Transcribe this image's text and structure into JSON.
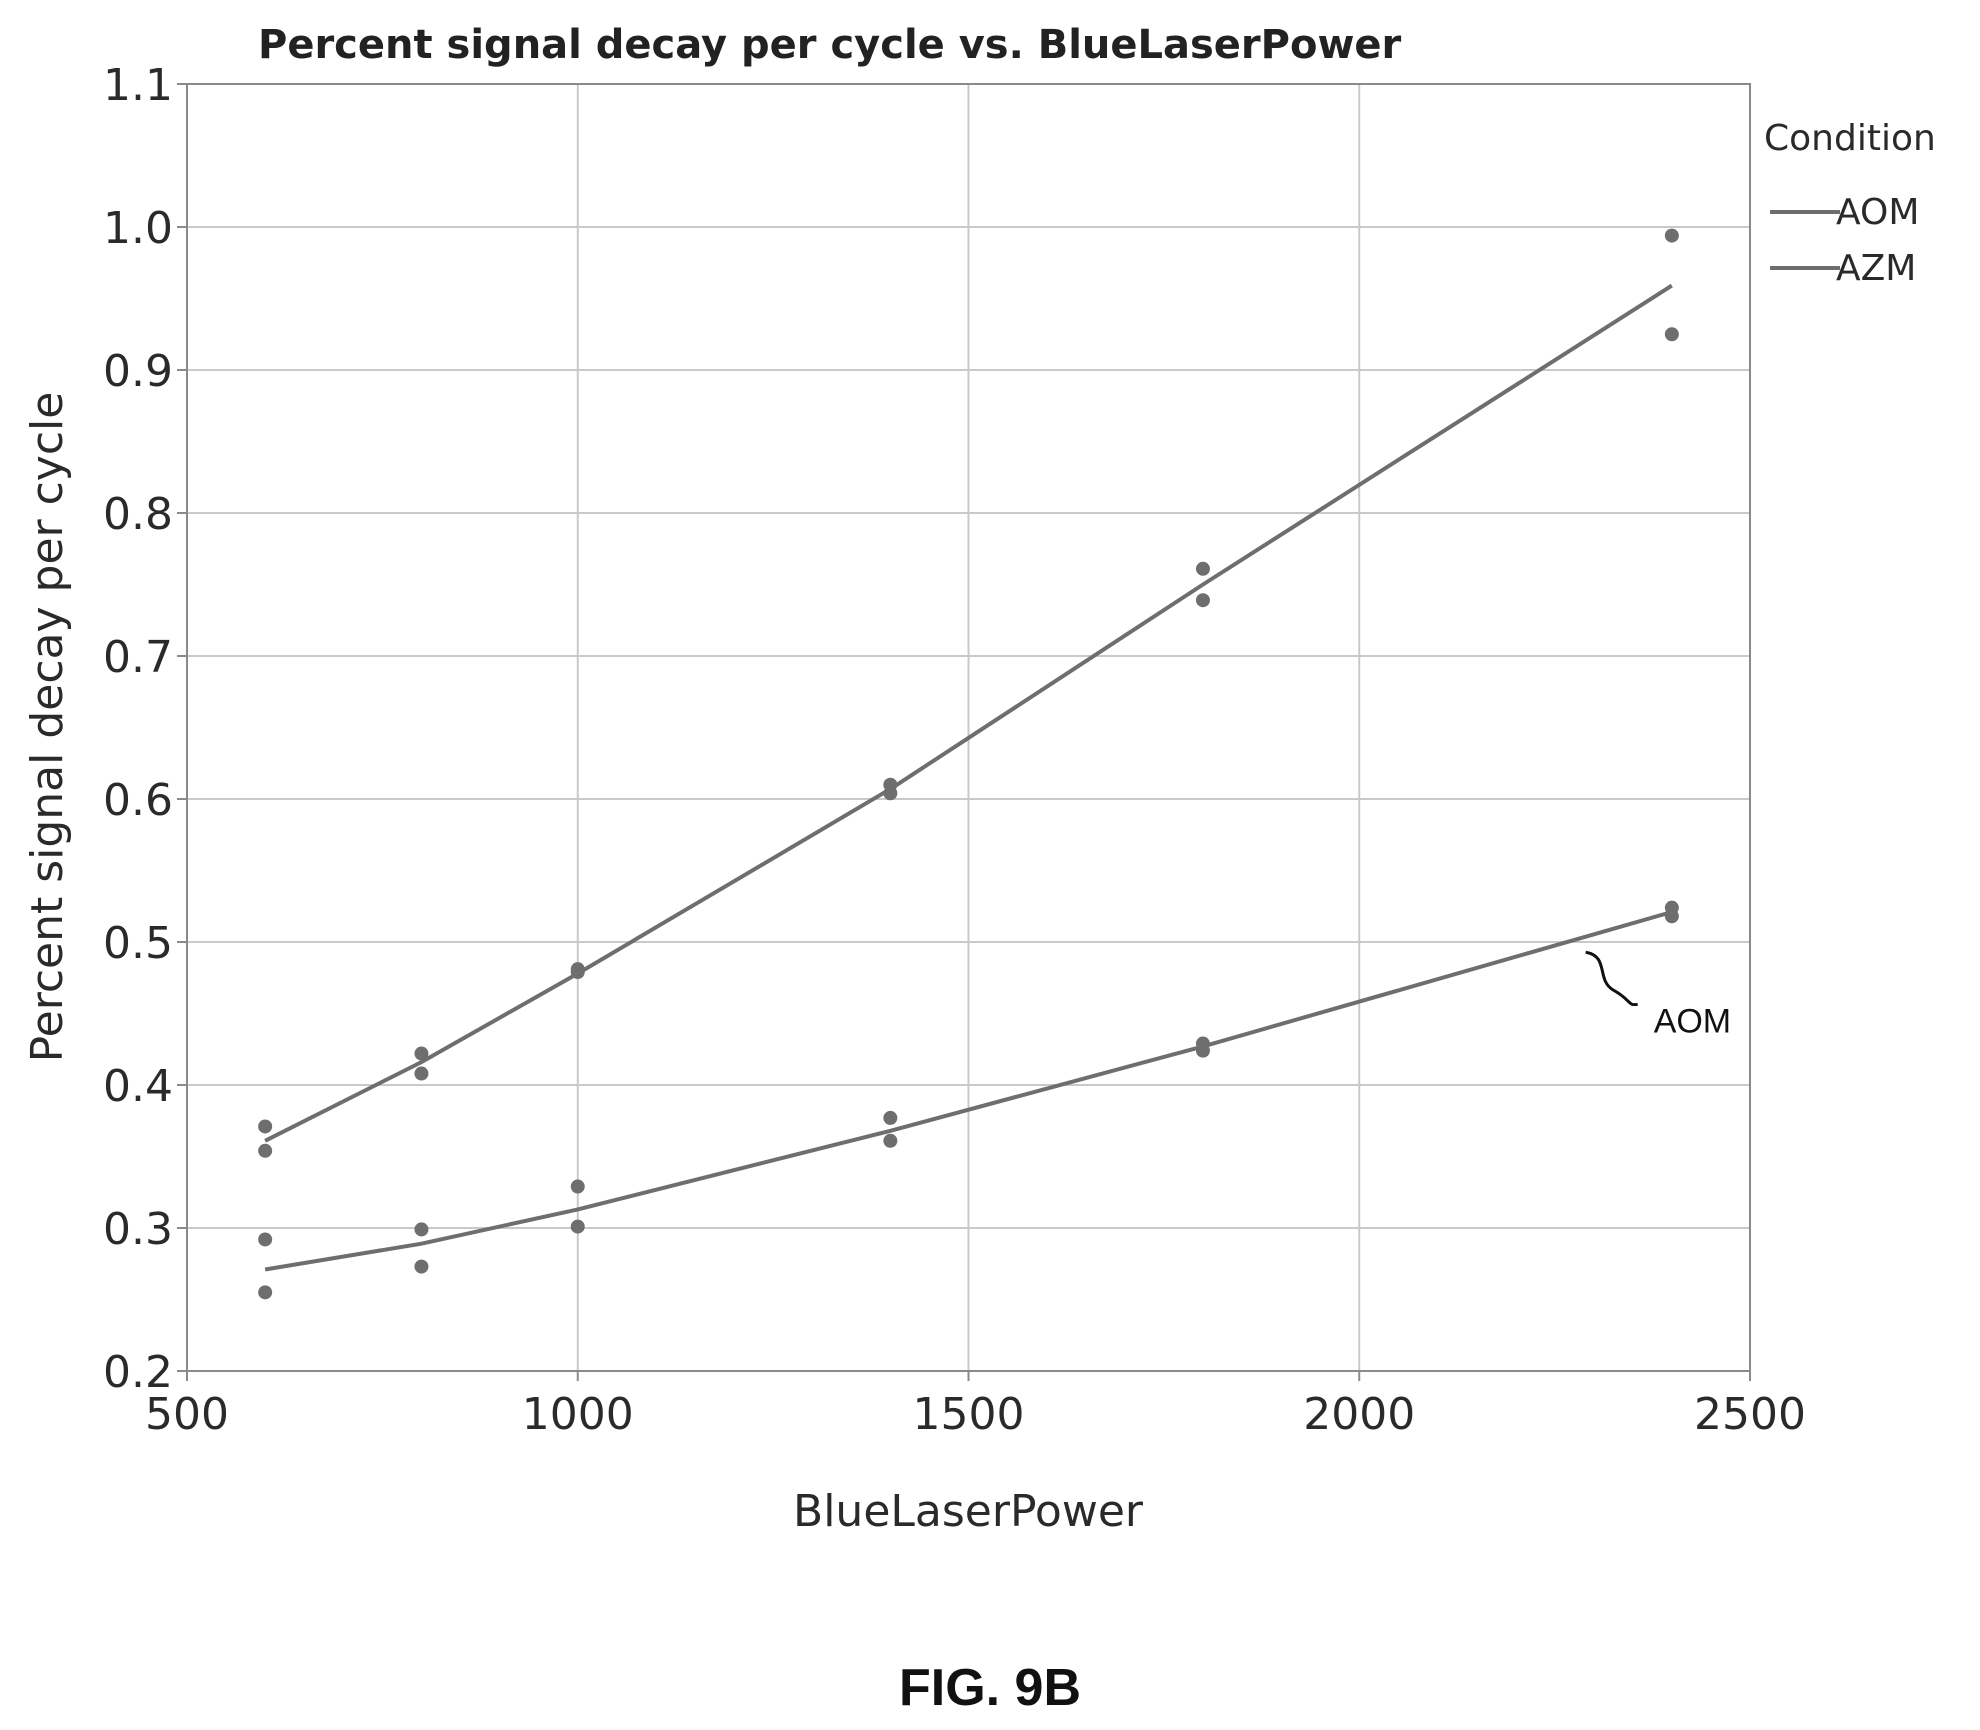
{
  "chart_data": {
    "type": "scatter",
    "title": "Percent signal decay per cycle vs. BlueLaserPower",
    "xlabel": "BlueLaserPower",
    "ylabel": "Percent signal decay per cycle",
    "xlim": [
      500,
      2500
    ],
    "ylim": [
      0.2,
      1.1
    ],
    "xticks": [
      500,
      1000,
      1500,
      2000,
      2500
    ],
    "xtick_labels": [
      "500",
      "1000",
      "1500",
      "2000",
      "2500"
    ],
    "yticks": [
      0.2,
      0.3,
      0.4,
      0.5,
      0.6,
      0.7,
      0.8,
      0.9,
      1.0,
      1.1
    ],
    "ytick_labels": [
      "0.2",
      "0.3",
      "0.4",
      "0.5",
      "0.6",
      "0.7",
      "0.8",
      "0.9",
      "1.0",
      "1.1"
    ],
    "grid": true,
    "legend": {
      "title": "Condition",
      "placement": "right",
      "entries": [
        "AOM",
        "AZM"
      ]
    },
    "series": [
      {
        "name": "AOM",
        "color": "#6e6e6e",
        "points": [
          {
            "x": 600,
            "y": 0.292
          },
          {
            "x": 600,
            "y": 0.255
          },
          {
            "x": 800,
            "y": 0.299
          },
          {
            "x": 800,
            "y": 0.273
          },
          {
            "x": 1000,
            "y": 0.329
          },
          {
            "x": 1000,
            "y": 0.301
          },
          {
            "x": 1400,
            "y": 0.377
          },
          {
            "x": 1400,
            "y": 0.361
          },
          {
            "x": 1800,
            "y": 0.429
          },
          {
            "x": 1800,
            "y": 0.424
          },
          {
            "x": 2400,
            "y": 0.524
          },
          {
            "x": 2400,
            "y": 0.518
          }
        ],
        "fit": [
          {
            "x": 600,
            "y": 0.271
          },
          {
            "x": 800,
            "y": 0.289
          },
          {
            "x": 1000,
            "y": 0.313
          },
          {
            "x": 1400,
            "y": 0.368
          },
          {
            "x": 1800,
            "y": 0.427
          },
          {
            "x": 2400,
            "y": 0.521
          }
        ]
      },
      {
        "name": "AZM",
        "color": "#6e6e6e",
        "points": [
          {
            "x": 600,
            "y": 0.371
          },
          {
            "x": 600,
            "y": 0.354
          },
          {
            "x": 800,
            "y": 0.422
          },
          {
            "x": 800,
            "y": 0.408
          },
          {
            "x": 1000,
            "y": 0.481
          },
          {
            "x": 1000,
            "y": 0.479
          },
          {
            "x": 1400,
            "y": 0.61
          },
          {
            "x": 1400,
            "y": 0.604
          },
          {
            "x": 1800,
            "y": 0.761
          },
          {
            "x": 1800,
            "y": 0.739
          },
          {
            "x": 2400,
            "y": 0.994
          },
          {
            "x": 2400,
            "y": 0.925
          }
        ],
        "fit": [
          {
            "x": 600,
            "y": 0.361
          },
          {
            "x": 800,
            "y": 0.416
          },
          {
            "x": 1000,
            "y": 0.478
          },
          {
            "x": 1400,
            "y": 0.607
          },
          {
            "x": 1800,
            "y": 0.75
          },
          {
            "x": 2400,
            "y": 0.959
          }
        ]
      }
    ],
    "annotations": [
      {
        "text": "AOM",
        "target_series": "AOM",
        "target_x": 2300,
        "target_y": 0.497
      }
    ]
  },
  "caption": "FIG. 9B"
}
